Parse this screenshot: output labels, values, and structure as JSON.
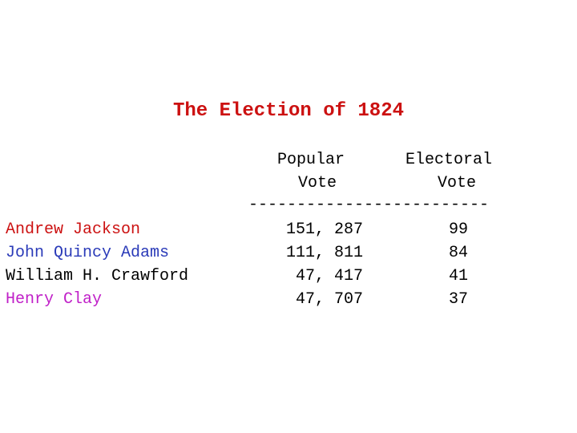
{
  "title": "The Election of 1824",
  "colors": {
    "title": "#cc1111",
    "jackson": "#cc1111",
    "adams": "#2a3ab8",
    "crawford": "#000000",
    "clay": "#c020c8"
  },
  "table": {
    "headers": {
      "popular_line1": "Popular",
      "popular_line2": "Vote",
      "electoral_line1": "Electoral",
      "electoral_line2": "Vote"
    },
    "rule": "-------------------------",
    "rows": [
      {
        "candidate": "Andrew Jackson",
        "popular_vote": "151, 287",
        "electoral_vote": "99"
      },
      {
        "candidate": "John Quincy Adams",
        "popular_vote": "111, 811",
        "electoral_vote": "84"
      },
      {
        "candidate": "William H. Crawford",
        "popular_vote": "47, 417",
        "electoral_vote": "41"
      },
      {
        "candidate": "Henry Clay",
        "popular_vote": "47, 707",
        "electoral_vote": "37"
      }
    ]
  }
}
